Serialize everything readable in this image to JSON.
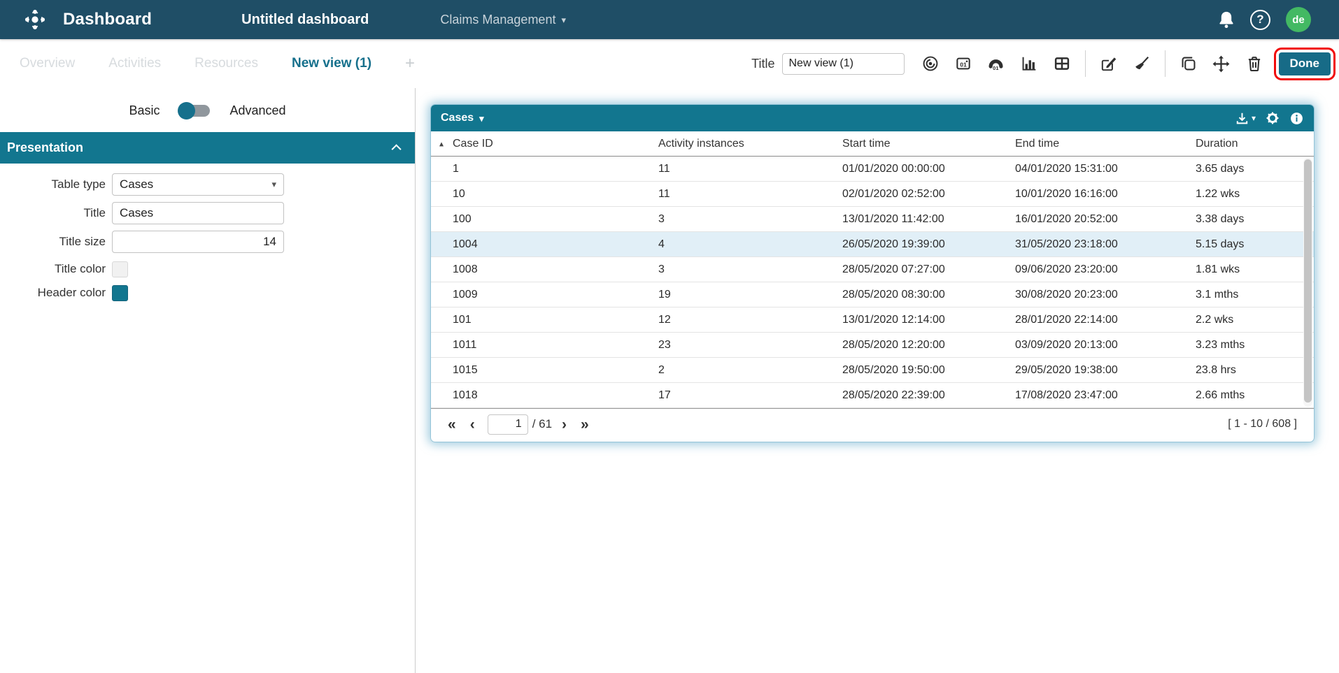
{
  "topbar": {
    "app_title": "Dashboard",
    "dashboard_name": "Untitled dashboard",
    "log_selector": "Claims Management",
    "caret": "▾",
    "help_glyph": "?",
    "avatar_initials": "de"
  },
  "tabs": {
    "items": [
      {
        "label": "Overview",
        "state": "disabled"
      },
      {
        "label": "Activities",
        "state": "disabled"
      },
      {
        "label": "Resources",
        "state": "disabled"
      },
      {
        "label": "New view (1)",
        "state": "active"
      }
    ],
    "add_label": "+"
  },
  "toolbar": {
    "title_label": "Title",
    "title_value": "New view (1)",
    "icons": [
      "dial-chart",
      "number-chart",
      "gauge-chart",
      "bar-chart",
      "table-chart",
      "edit",
      "clear",
      "copy",
      "move",
      "delete"
    ],
    "done_label": "Done"
  },
  "sidebar": {
    "mode_toggle": {
      "left": "Basic",
      "right": "Advanced",
      "selected": "Basic"
    },
    "section_title": "Presentation",
    "fields": {
      "table_type": {
        "label": "Table type",
        "value": "Cases"
      },
      "title": {
        "label": "Title",
        "value": "Cases"
      },
      "title_size": {
        "label": "Title size",
        "value": "14"
      },
      "title_color": {
        "label": "Title color",
        "value": "#f1f1f1"
      },
      "header_color": {
        "label": "Header color",
        "value": "#12768f"
      }
    }
  },
  "widget": {
    "title": "Cases",
    "title_caret": "▾",
    "sort_icon": "▴",
    "columns": [
      "Case ID",
      "Activity instances",
      "Start time",
      "End time",
      "Duration"
    ],
    "rows": [
      [
        "1",
        "11",
        "01/01/2020 00:00:00",
        "04/01/2020 15:31:00",
        "3.65 days"
      ],
      [
        "10",
        "11",
        "02/01/2020 02:52:00",
        "10/01/2020 16:16:00",
        "1.22 wks"
      ],
      [
        "100",
        "3",
        "13/01/2020 11:42:00",
        "16/01/2020 20:52:00",
        "3.38 days"
      ],
      [
        "1004",
        "4",
        "26/05/2020 19:39:00",
        "31/05/2020 23:18:00",
        "5.15 days"
      ],
      [
        "1008",
        "3",
        "28/05/2020 07:27:00",
        "09/06/2020 23:20:00",
        "1.81 wks"
      ],
      [
        "1009",
        "19",
        "28/05/2020 08:30:00",
        "30/08/2020 20:23:00",
        "3.1 mths"
      ],
      [
        "101",
        "12",
        "13/01/2020 12:14:00",
        "28/01/2020 22:14:00",
        "2.2 wks"
      ],
      [
        "1011",
        "23",
        "28/05/2020 12:20:00",
        "03/09/2020 20:13:00",
        "3.23 mths"
      ],
      [
        "1015",
        "2",
        "28/05/2020 19:50:00",
        "29/05/2020 19:38:00",
        "23.8 hrs"
      ],
      [
        "1018",
        "17",
        "28/05/2020 22:39:00",
        "17/08/2020 23:47:00",
        "2.66 mths"
      ]
    ],
    "highlighted_row_index": 3,
    "pagination": {
      "current_page": "1",
      "total_label": "/ 61",
      "first": "«",
      "prev": "‹",
      "next": "›",
      "last": "»",
      "range_label": "[ 1 - 10 / 608 ]"
    }
  },
  "colors": {
    "topbar_bg": "#1f4e66",
    "accent_teal": "#12768f",
    "active_tab": "#16708c",
    "avatar_green": "#43b963",
    "row_highlight": "#e1eff7",
    "done_highlight_red": "#f10c0c"
  }
}
